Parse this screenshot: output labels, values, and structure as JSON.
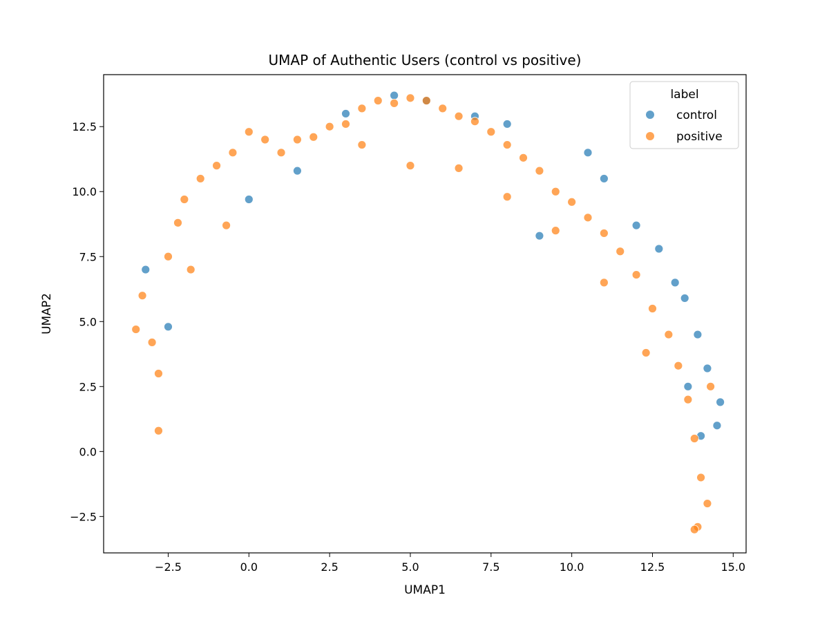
{
  "chart_data": {
    "type": "scatter",
    "title": "UMAP of Authentic Users (control vs positive)",
    "xlabel": "UMAP1",
    "ylabel": "UMAP2",
    "xlim": [
      -4.5,
      15.4
    ],
    "ylim": [
      -3.9,
      14.5
    ],
    "xticks": [
      -2.5,
      0.0,
      2.5,
      5.0,
      7.5,
      10.0,
      12.5,
      15.0
    ],
    "xtick_labels": [
      "−2.5",
      "0.0",
      "2.5",
      "5.0",
      "7.5",
      "10.0",
      "12.5",
      "15.0"
    ],
    "yticks": [
      -2.5,
      0.0,
      2.5,
      5.0,
      7.5,
      10.0,
      12.5
    ],
    "ytick_labels": [
      "−2.5",
      "0.0",
      "2.5",
      "5.0",
      "7.5",
      "10.0",
      "12.5"
    ],
    "grid": false,
    "legend": {
      "title": "label",
      "placement": "top-right",
      "entries": [
        "control",
        "positive"
      ]
    },
    "colors": {
      "control": "#1f77b4",
      "positive": "#ff7f0e"
    },
    "series": [
      {
        "name": "control",
        "x": [
          -3.2,
          -2.5,
          0.0,
          1.5,
          3.0,
          4.5,
          5.5,
          7.0,
          8.0,
          9.0,
          10.5,
          11.0,
          12.0,
          12.7,
          13.2,
          13.5,
          13.9,
          14.2,
          14.6,
          14.5,
          14.0,
          13.6
        ],
        "y": [
          7.0,
          4.8,
          9.7,
          10.8,
          13.0,
          13.7,
          13.5,
          12.9,
          12.6,
          8.3,
          11.5,
          10.5,
          8.7,
          7.8,
          6.5,
          5.9,
          4.5,
          3.2,
          1.9,
          1.0,
          0.6,
          2.5
        ]
      },
      {
        "name": "positive",
        "x": [
          -3.5,
          -3.3,
          -3.0,
          -2.8,
          -2.8,
          -2.5,
          -2.2,
          -2.0,
          -1.5,
          -1.0,
          -0.5,
          0.0,
          0.5,
          1.0,
          1.5,
          2.0,
          2.5,
          3.0,
          3.5,
          4.0,
          4.5,
          5.0,
          5.5,
          6.0,
          6.5,
          7.0,
          7.5,
          8.0,
          8.5,
          9.0,
          9.5,
          10.0,
          10.5,
          11.0,
          11.5,
          12.0,
          12.5,
          13.0,
          13.3,
          13.6,
          13.8,
          14.0,
          14.2,
          14.3,
          13.9,
          13.8,
          12.3,
          11.0,
          9.5,
          8.0,
          6.5,
          5.0,
          3.5,
          -0.7,
          -1.8
        ],
        "y": [
          4.7,
          6.0,
          4.2,
          3.0,
          0.8,
          7.5,
          8.8,
          9.7,
          10.5,
          11.0,
          11.5,
          12.3,
          12.0,
          11.5,
          12.0,
          12.1,
          12.5,
          12.6,
          13.2,
          13.5,
          13.4,
          13.6,
          13.5,
          13.2,
          12.9,
          12.7,
          12.3,
          11.8,
          11.3,
          10.8,
          10.0,
          9.6,
          9.0,
          8.4,
          7.7,
          6.8,
          5.5,
          4.5,
          3.3,
          2.0,
          0.5,
          -1.0,
          -2.0,
          2.5,
          -2.9,
          -3.0,
          3.8,
          6.5,
          8.5,
          9.8,
          10.9,
          11.0,
          11.8,
          8.7,
          7.0
        ]
      }
    ]
  }
}
